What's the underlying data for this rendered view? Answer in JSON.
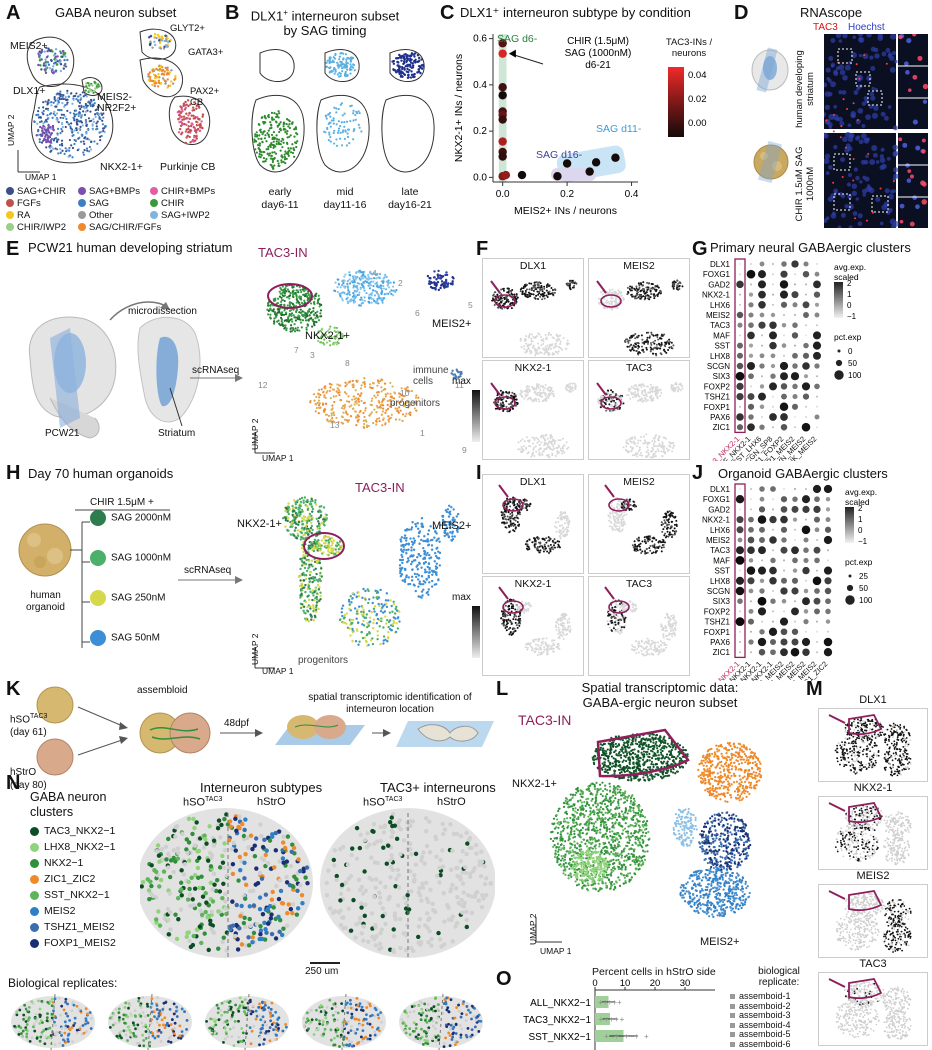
{
  "letters": [
    "A",
    "B",
    "C",
    "D",
    "E",
    "F",
    "G",
    "H",
    "I",
    "J",
    "K",
    "L",
    "M",
    "N",
    "O"
  ],
  "panelA": {
    "title": "GABA neuron subset",
    "labels": [
      "MEIS2+",
      "GLYT2+",
      "GATA3+",
      "DLX1+",
      "MEIS2-NR2F2+",
      "PAX2+ CB",
      "NKX2-1+",
      "Purkinje CB"
    ],
    "axis_y": "UMAP 2",
    "axis_x": "UMAP 1",
    "legend": [
      {
        "label": "SAG+CHIR",
        "color": "#3a4f8a"
      },
      {
        "label": "SAG+BMPs",
        "color": "#7b4fb0"
      },
      {
        "label": "CHIR+BMPs",
        "color": "#e35ca8"
      },
      {
        "label": "FGFs",
        "color": "#c0504d"
      },
      {
        "label": "SAG",
        "color": "#3d7fc1"
      },
      {
        "label": "CHIR",
        "color": "#3a9a3a"
      },
      {
        "label": "RA",
        "color": "#f2c81c"
      },
      {
        "label": "Other",
        "color": "#9a9a9a"
      },
      {
        "label": "SAG+IWP2",
        "color": "#7fb3e0"
      },
      {
        "label": "CHIR/IWP2",
        "color": "#9bd08a"
      },
      {
        "label": "SAG/CHIR/FGFs",
        "color": "#f08a2c"
      }
    ]
  },
  "panelB": {
    "title_line1": "DLX1",
    "title_sup": "+",
    "title_line1b": " interneuron subset",
    "title_line2": "by SAG timing",
    "groups": [
      {
        "name": "early",
        "days": "day6-11",
        "color": "#2d8a2d"
      },
      {
        "name": "mid",
        "days": "day11-16",
        "color": "#5bb0e3"
      },
      {
        "name": "late",
        "days": "day16-21",
        "color": "#1f2f8c"
      }
    ]
  },
  "panelC": {
    "title": "DLX1⁺ interneuron subtype by condition",
    "ylabel": "NKX2-1+ INs / neurons",
    "xlabel": "MEIS2+ INs / neurons",
    "annotation": "CHIR (1.5μM) SAG (1000nM) d6-21",
    "groups": [
      "SAG d6-",
      "SAG d11-",
      "SAG d16-"
    ],
    "colorbar_title": "TAC3-INs / neurons",
    "colorbar_ticks": [
      "0.04",
      "0.02",
      "0.00"
    ]
  },
  "chart_data": {
    "type": "scatter",
    "title": "DLX1⁺ interneuron subtype by condition",
    "xlabel": "MEIS2+ INs / neurons",
    "ylabel": "NKX2-1+ INs / neurons",
    "xlim": [
      -0.03,
      0.42
    ],
    "ylim": [
      -0.02,
      0.62
    ],
    "xticks": [
      0.0,
      0.2,
      0.4
    ],
    "yticks": [
      0.0,
      0.2,
      0.4,
      0.6
    ],
    "color_scale": {
      "label": "TAC3-INs / neurons",
      "min": 0.0,
      "max": 0.05
    },
    "points": [
      {
        "x": 0.0,
        "y": 0.58,
        "c": 0.015
      },
      {
        "x": 0.0,
        "y": 0.535,
        "c": 0.045
      },
      {
        "x": 0.0,
        "y": 0.39,
        "c": 0.01
      },
      {
        "x": 0.0,
        "y": 0.355,
        "c": 0.0
      },
      {
        "x": 0.0,
        "y": 0.285,
        "c": 0.012
      },
      {
        "x": 0.0,
        "y": 0.27,
        "c": 0.02
      },
      {
        "x": 0.0,
        "y": 0.25,
        "c": 0.008
      },
      {
        "x": 0.0,
        "y": 0.155,
        "c": 0.035
      },
      {
        "x": 0.0,
        "y": 0.11,
        "c": 0.01
      },
      {
        "x": 0.0,
        "y": 0.09,
        "c": 0.006
      },
      {
        "x": 0.0,
        "y": 0.005,
        "c": 0.025
      },
      {
        "x": 0.01,
        "y": 0.01,
        "c": 0.03
      },
      {
        "x": 0.06,
        "y": 0.01,
        "c": 0.0
      },
      {
        "x": 0.17,
        "y": 0.005,
        "c": 0.0
      },
      {
        "x": 0.2,
        "y": 0.06,
        "c": 0.0
      },
      {
        "x": 0.27,
        "y": 0.025,
        "c": 0.0
      },
      {
        "x": 0.29,
        "y": 0.065,
        "c": 0.0
      },
      {
        "x": 0.35,
        "y": 0.085,
        "c": 0.0
      }
    ]
  },
  "panelD": {
    "title": "RNAscope",
    "stain1": "TAC3",
    "stain2": "Hoechst",
    "row1": "human developing striatum",
    "row2": "CHIR 1.5uM SAG 1000nM"
  },
  "panelE": {
    "title": "PCW21 human developing striatum",
    "microdissection": "microdissection",
    "scrnaseq": "scRNAseq",
    "pcw": "PCW21",
    "striatum": "Striatum",
    "tac3": "TAC3-IN",
    "meis2": "MEIS2+",
    "nkx": "NKX2-1+",
    "immune": "immune cells",
    "progenitors": "progenitors",
    "cluster_numbers": [
      "4",
      "2",
      "5",
      "3",
      "6",
      "7",
      "8",
      "10",
      "9",
      "13",
      "12",
      "11",
      "1"
    ],
    "axis_y": "UMAP 2",
    "axis_x": "UMAP 1"
  },
  "panelF": {
    "genes": [
      "DLX1",
      "MEIS2",
      "NKX2-1",
      "TAC3"
    ],
    "scale": "max"
  },
  "panelG": {
    "title": "Primary neural GABAergic clusters",
    "genes": [
      "DLX1",
      "FOXG1",
      "GAD2",
      "NKX2-1",
      "LHX6",
      "MEIS2",
      "TAC3",
      "MAF",
      "SST",
      "LHX8",
      "SCGN",
      "SIX3",
      "FOXP2",
      "TSHZ1",
      "FOXP1",
      "PAX6",
      "ZIC1"
    ],
    "clusters": [
      "TAC3_NKX2-1",
      "MAF_NKX2-1",
      "SST_LHX6",
      "SCGN_SP8",
      "TSHZ1_FOXP2",
      "FOXP1_MEIS2",
      "PDYN_MEIS2",
      "PENK_MEIS2"
    ],
    "legend_avg": "avg.exp. scaled",
    "avg_ticks": [
      "2",
      "1",
      "0",
      "−1"
    ],
    "legend_pct": "pct.exp",
    "pct_ticks": [
      "0",
      "50",
      "100"
    ]
  },
  "panelH": {
    "title": "Day 70 human organoids",
    "chir": "CHIR 1.5μM +",
    "organoid": "human organoid",
    "scrnaseq": "scRNAseq",
    "conditions": [
      {
        "label": "SAG 2000nM",
        "color": "#2e7d4f"
      },
      {
        "label": "SAG 1000nM",
        "color": "#4cb06a"
      },
      {
        "label": "SAG 250nM",
        "color": "#d6d84c"
      },
      {
        "label": "SAG 50nM",
        "color": "#3c8fd6"
      }
    ],
    "nkx": "NKX2-1+",
    "tac3": "TAC3-IN",
    "meis2": "MEIS2+",
    "progenitors": "progenitors",
    "axis_y": "UMAP 2",
    "axis_x": "UMAP 1"
  },
  "panelI": {
    "genes": [
      "DLX1",
      "MEIS2",
      "NKX2-1",
      "TAC3"
    ],
    "scale": "max"
  },
  "panelJ": {
    "title": "Organoid GABAergic clusters",
    "genes": [
      "DLX1",
      "FOXG1",
      "GAD2",
      "NKX2-1",
      "LHX6",
      "MEIS2",
      "TAC3",
      "MAF",
      "SST",
      "LHX8",
      "SCGN",
      "SIX3",
      "FOXP2",
      "TSHZ1",
      "FOXP1",
      "PAX6",
      "ZIC1"
    ],
    "clusters": [
      "TAC3_NKX2-1",
      "MAF_NKX2-1",
      "SST_NKX2-1",
      "LHX8_NKX2-1",
      "SIX3_MEIS2",
      "FOXP2_MEIS2",
      "FOXP1_MEIS2",
      "PAX6_MEIS2",
      "ZIC1_ZIC2"
    ],
    "legend_avg": "avg.exp. scaled",
    "avg_ticks": [
      "2",
      "1",
      "0",
      "−1"
    ],
    "legend_pct": "pct.exp",
    "pct_ticks": [
      "25",
      "50",
      "100"
    ]
  },
  "panelK": {
    "hso": "hSO",
    "hso_sup": "TAC3",
    "hso_day": "(day 61)",
    "hstro": "hStrO",
    "hstro_day": "(day 80)",
    "assembloid": "assembloid",
    "dpf": "48dpf",
    "spatial": "spatial transcriptomic identification of interneuron location"
  },
  "panelL": {
    "title_line1": "Spatial transcriptomic data:",
    "title_line2": "GABA-ergic neuron subset",
    "tac3": "TAC3-IN",
    "nkx": "NKX2-1+",
    "meis2": "MEIS2+",
    "axis_y": "UMAP 2",
    "axis_x": "UMAP 1"
  },
  "panelM": {
    "genes": [
      "DLX1",
      "NKX2-1",
      "MEIS2",
      "TAC3"
    ]
  },
  "panelN": {
    "legend_title_1": "GABA neuron",
    "legend_title_2": "clusters",
    "clusters": [
      {
        "label": "TAC3_NKX2−1",
        "color": "#0d4d25"
      },
      {
        "label": "LHX8_NKX2−1",
        "color": "#8fd37a"
      },
      {
        "label": "NKX2−1",
        "color": "#2f8f3a"
      },
      {
        "label": "ZIC1_ZIC2",
        "color": "#ef8a2a"
      },
      {
        "label": "SST_NKX2−1",
        "color": "#5fb35a"
      },
      {
        "label": "MEIS2",
        "color": "#2f7fc6"
      },
      {
        "label": "TSHZ1_MEIS2",
        "color": "#3b6cae"
      },
      {
        "label": "FOXP1_MEIS2",
        "color": "#1a2f73"
      }
    ],
    "map1_title": "Interneuron subtypes",
    "map2_title": "TAC3+ interneurons",
    "hso": "hSO",
    "hso_sup": "TAC3",
    "hstro": "hStrO",
    "scalebar": "250 um",
    "replicates": "Biological replicates:"
  },
  "panelO": {
    "title": "Percent cells in hStrO side",
    "ticks": [
      "0",
      "10",
      "20",
      "30"
    ],
    "rows": [
      {
        "label": "ALL_NKX2−1",
        "value": 4.5
      },
      {
        "label": "TAC3_NKX2−1",
        "value": 5.0
      },
      {
        "label": "SST_NKX2−1",
        "value": 9.5
      }
    ],
    "legend_title_1": "biological",
    "legend_title_2": "replicate:",
    "replicates": [
      "assemboid-1",
      "assemboid-2",
      "assemboid-3",
      "assemboid-4",
      "assemboid-5",
      "assemboid-6"
    ]
  }
}
